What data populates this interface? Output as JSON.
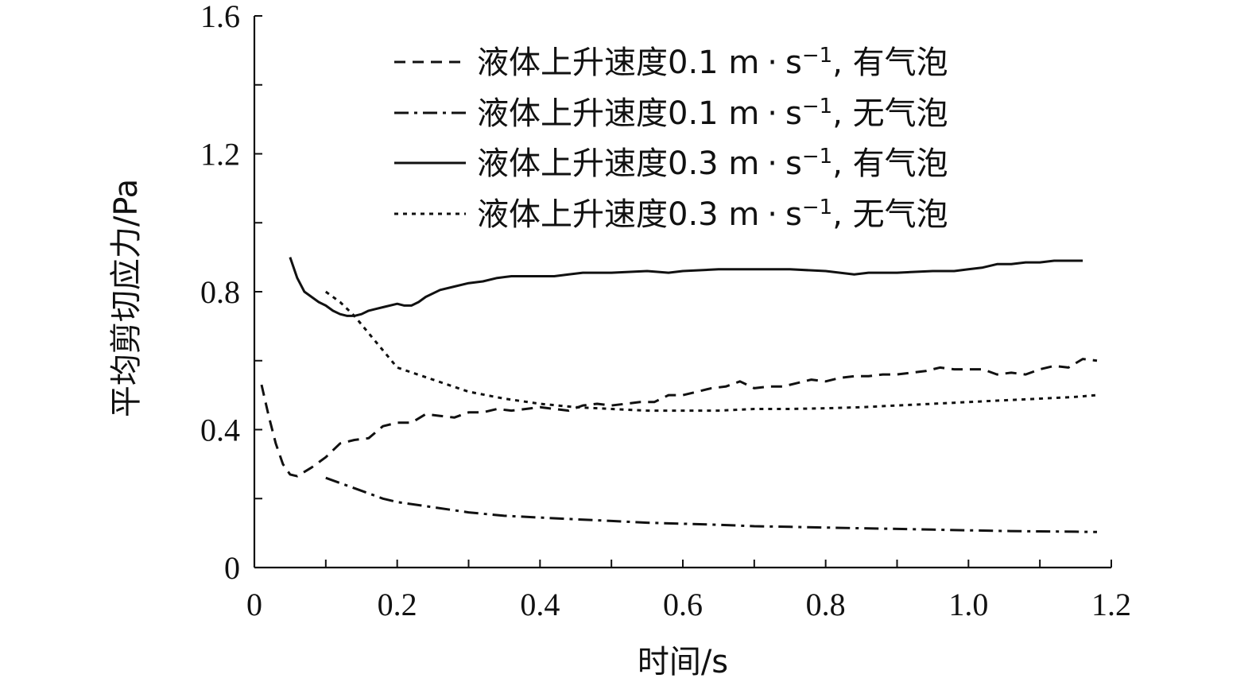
{
  "chart_data": {
    "type": "line",
    "xlabel": "时间/s",
    "ylabel": "平均剪切应力/Pa",
    "xlim": [
      0,
      1.2
    ],
    "ylim": [
      0,
      1.6
    ],
    "x_ticks": [
      "0",
      "0.2",
      "0.4",
      "0.6",
      "0.8",
      "1.0",
      "1.2"
    ],
    "y_ticks": [
      "0",
      "0.4",
      "0.8",
      "1.2",
      "1.6"
    ],
    "legend_position": "top-right",
    "grid": false,
    "series": [
      {
        "name": "液体上升速度0.1 m·s⁻¹, 有气泡",
        "legend": {
          "main": "液体上升速度0.1 m",
          "unit": "s",
          "exp": "−1",
          "suffix": ", 有气泡"
        },
        "style": "dashed",
        "points": [
          [
            0.01,
            0.53
          ],
          [
            0.02,
            0.44
          ],
          [
            0.03,
            0.36
          ],
          [
            0.04,
            0.3
          ],
          [
            0.05,
            0.27
          ],
          [
            0.06,
            0.265
          ],
          [
            0.08,
            0.29
          ],
          [
            0.1,
            0.32
          ],
          [
            0.12,
            0.36
          ],
          [
            0.14,
            0.37
          ],
          [
            0.16,
            0.375
          ],
          [
            0.18,
            0.41
          ],
          [
            0.2,
            0.42
          ],
          [
            0.22,
            0.42
          ],
          [
            0.24,
            0.445
          ],
          [
            0.26,
            0.44
          ],
          [
            0.28,
            0.435
          ],
          [
            0.3,
            0.45
          ],
          [
            0.32,
            0.45
          ],
          [
            0.34,
            0.46
          ],
          [
            0.36,
            0.455
          ],
          [
            0.38,
            0.46
          ],
          [
            0.4,
            0.465
          ],
          [
            0.42,
            0.46
          ],
          [
            0.44,
            0.455
          ],
          [
            0.46,
            0.47
          ],
          [
            0.48,
            0.475
          ],
          [
            0.5,
            0.47
          ],
          [
            0.52,
            0.475
          ],
          [
            0.54,
            0.48
          ],
          [
            0.56,
            0.48
          ],
          [
            0.58,
            0.5
          ],
          [
            0.6,
            0.5
          ],
          [
            0.62,
            0.51
          ],
          [
            0.64,
            0.52
          ],
          [
            0.66,
            0.525
          ],
          [
            0.68,
            0.54
          ],
          [
            0.7,
            0.52
          ],
          [
            0.72,
            0.525
          ],
          [
            0.74,
            0.525
          ],
          [
            0.76,
            0.535
          ],
          [
            0.78,
            0.545
          ],
          [
            0.8,
            0.54
          ],
          [
            0.82,
            0.55
          ],
          [
            0.84,
            0.555
          ],
          [
            0.86,
            0.555
          ],
          [
            0.88,
            0.56
          ],
          [
            0.9,
            0.56
          ],
          [
            0.92,
            0.565
          ],
          [
            0.94,
            0.57
          ],
          [
            0.96,
            0.58
          ],
          [
            0.98,
            0.575
          ],
          [
            1.0,
            0.575
          ],
          [
            1.02,
            0.575
          ],
          [
            1.04,
            0.56
          ],
          [
            1.06,
            0.565
          ],
          [
            1.08,
            0.56
          ],
          [
            1.1,
            0.575
          ],
          [
            1.12,
            0.585
          ],
          [
            1.14,
            0.58
          ],
          [
            1.16,
            0.605
          ],
          [
            1.18,
            0.6
          ]
        ]
      },
      {
        "name": "液体上升速度0.1 m·s⁻¹, 无气泡",
        "legend": {
          "main": "液体上升速度0.1 m",
          "unit": "s",
          "exp": "−1",
          "suffix": ", 无气泡"
        },
        "style": "dashdot",
        "points": [
          [
            0.1,
            0.26
          ],
          [
            0.12,
            0.245
          ],
          [
            0.14,
            0.23
          ],
          [
            0.16,
            0.215
          ],
          [
            0.18,
            0.2
          ],
          [
            0.2,
            0.19
          ],
          [
            0.25,
            0.175
          ],
          [
            0.3,
            0.16
          ],
          [
            0.35,
            0.15
          ],
          [
            0.4,
            0.145
          ],
          [
            0.45,
            0.14
          ],
          [
            0.5,
            0.135
          ],
          [
            0.55,
            0.13
          ],
          [
            0.6,
            0.127
          ],
          [
            0.65,
            0.124
          ],
          [
            0.7,
            0.12
          ],
          [
            0.75,
            0.118
          ],
          [
            0.8,
            0.116
          ],
          [
            0.85,
            0.114
          ],
          [
            0.9,
            0.112
          ],
          [
            0.95,
            0.11
          ],
          [
            1.0,
            0.108
          ],
          [
            1.05,
            0.106
          ],
          [
            1.1,
            0.105
          ],
          [
            1.15,
            0.104
          ],
          [
            1.18,
            0.103
          ]
        ]
      },
      {
        "name": "液体上升速度0.3 m·s⁻¹, 有气泡",
        "legend": {
          "main": "液体上升速度0.3 m",
          "unit": "s",
          "exp": "−1",
          "suffix": ", 有气泡"
        },
        "style": "solid",
        "points": [
          [
            0.05,
            0.9
          ],
          [
            0.06,
            0.84
          ],
          [
            0.07,
            0.8
          ],
          [
            0.08,
            0.785
          ],
          [
            0.09,
            0.77
          ],
          [
            0.1,
            0.76
          ],
          [
            0.11,
            0.745
          ],
          [
            0.12,
            0.735
          ],
          [
            0.13,
            0.73
          ],
          [
            0.14,
            0.73
          ],
          [
            0.15,
            0.735
          ],
          [
            0.16,
            0.745
          ],
          [
            0.17,
            0.75
          ],
          [
            0.18,
            0.755
          ],
          [
            0.2,
            0.765
          ],
          [
            0.21,
            0.76
          ],
          [
            0.22,
            0.76
          ],
          [
            0.23,
            0.77
          ],
          [
            0.24,
            0.785
          ],
          [
            0.26,
            0.805
          ],
          [
            0.28,
            0.815
          ],
          [
            0.3,
            0.825
          ],
          [
            0.32,
            0.83
          ],
          [
            0.34,
            0.84
          ],
          [
            0.36,
            0.845
          ],
          [
            0.4,
            0.845
          ],
          [
            0.42,
            0.845
          ],
          [
            0.44,
            0.85
          ],
          [
            0.46,
            0.855
          ],
          [
            0.5,
            0.855
          ],
          [
            0.55,
            0.86
          ],
          [
            0.58,
            0.855
          ],
          [
            0.6,
            0.86
          ],
          [
            0.65,
            0.865
          ],
          [
            0.7,
            0.865
          ],
          [
            0.75,
            0.865
          ],
          [
            0.8,
            0.86
          ],
          [
            0.82,
            0.855
          ],
          [
            0.84,
            0.85
          ],
          [
            0.86,
            0.855
          ],
          [
            0.9,
            0.855
          ],
          [
            0.95,
            0.86
          ],
          [
            0.98,
            0.86
          ],
          [
            1.0,
            0.865
          ],
          [
            1.02,
            0.87
          ],
          [
            1.04,
            0.88
          ],
          [
            1.06,
            0.88
          ],
          [
            1.08,
            0.885
          ],
          [
            1.1,
            0.885
          ],
          [
            1.12,
            0.89
          ],
          [
            1.14,
            0.89
          ],
          [
            1.16,
            0.89
          ]
        ]
      },
      {
        "name": "液体上升速度0.3 m·s⁻¹, 无气泡",
        "legend": {
          "main": "液体上升速度0.3 m",
          "unit": "s",
          "exp": "−1",
          "suffix": ", 无气泡"
        },
        "style": "dotted",
        "points": [
          [
            0.1,
            0.8
          ],
          [
            0.12,
            0.77
          ],
          [
            0.14,
            0.73
          ],
          [
            0.16,
            0.68
          ],
          [
            0.18,
            0.63
          ],
          [
            0.2,
            0.58
          ],
          [
            0.25,
            0.545
          ],
          [
            0.3,
            0.51
          ],
          [
            0.35,
            0.49
          ],
          [
            0.4,
            0.475
          ],
          [
            0.45,
            0.465
          ],
          [
            0.5,
            0.46
          ],
          [
            0.55,
            0.455
          ],
          [
            0.6,
            0.455
          ],
          [
            0.65,
            0.455
          ],
          [
            0.7,
            0.46
          ],
          [
            0.75,
            0.46
          ],
          [
            0.8,
            0.462
          ],
          [
            0.85,
            0.465
          ],
          [
            0.9,
            0.47
          ],
          [
            0.95,
            0.475
          ],
          [
            1.0,
            0.48
          ],
          [
            1.05,
            0.485
          ],
          [
            1.1,
            0.49
          ],
          [
            1.15,
            0.495
          ],
          [
            1.18,
            0.5
          ]
        ]
      }
    ]
  }
}
